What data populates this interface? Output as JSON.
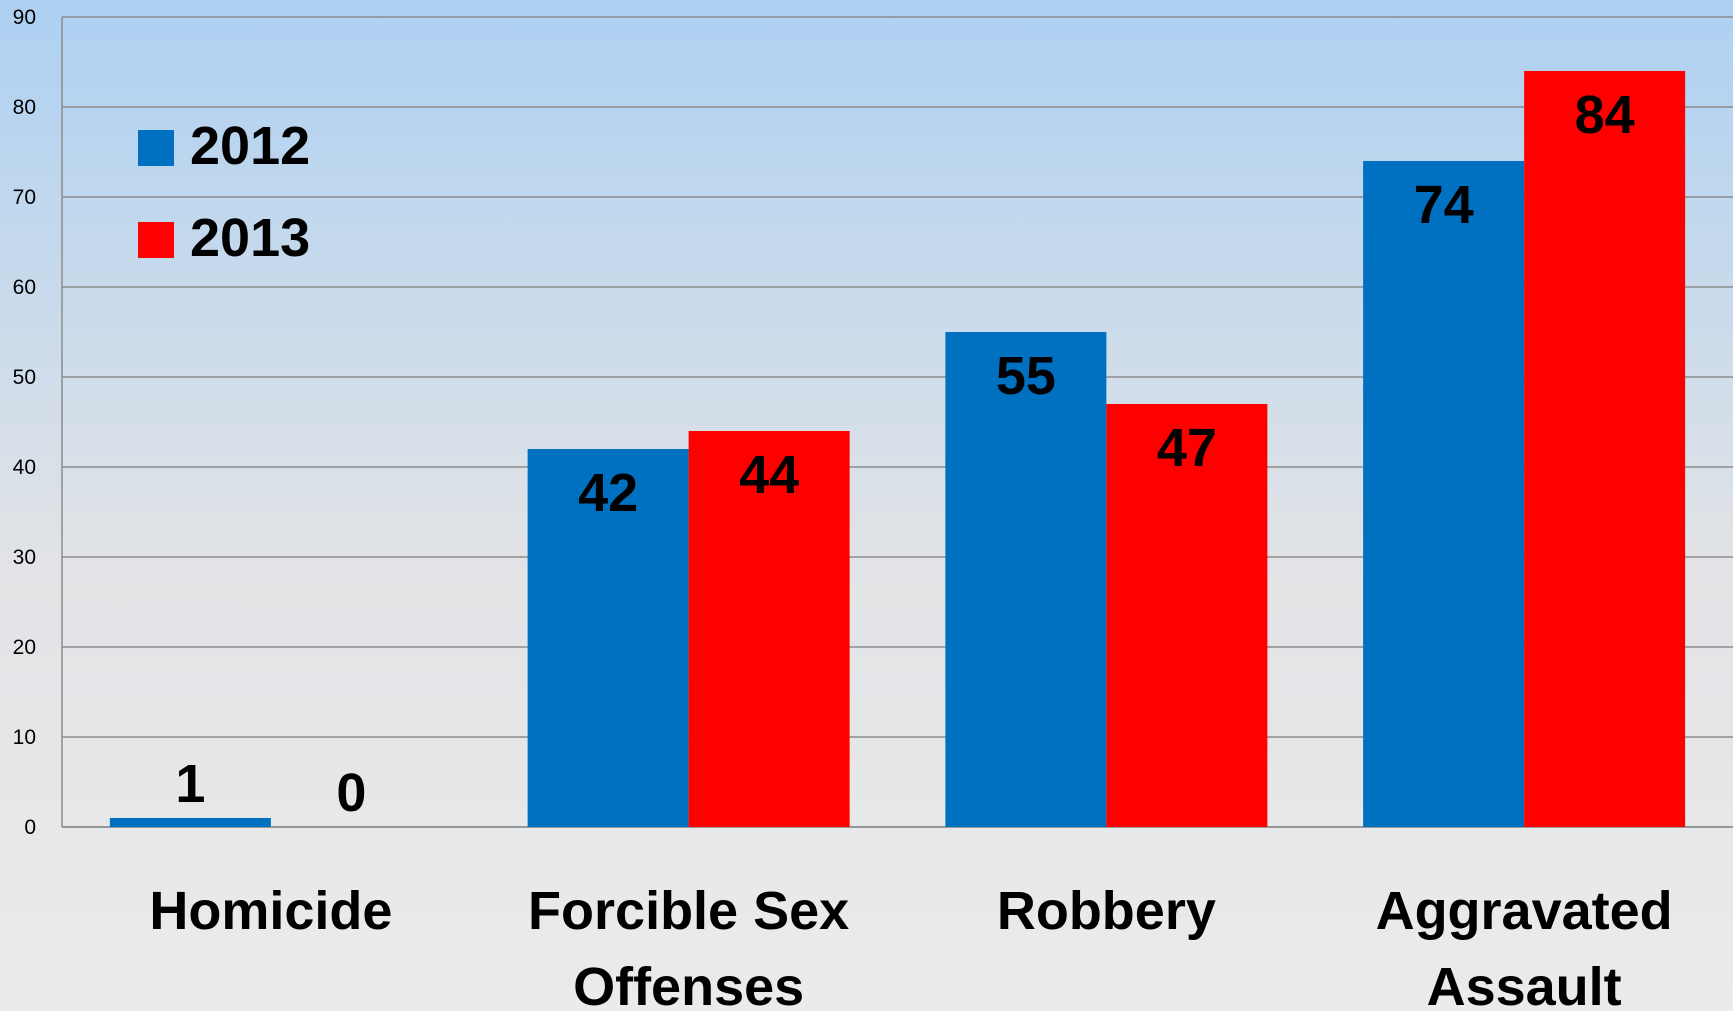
{
  "chart_data": {
    "type": "bar",
    "title": "",
    "xlabel": "",
    "ylabel": "",
    "ylim": [
      0,
      90
    ],
    "yticks": [
      0,
      10,
      20,
      30,
      40,
      50,
      60,
      70,
      80,
      90
    ],
    "categories": [
      "Homicide",
      "Forcible Sex Offenses",
      "Robbery",
      "Aggravated Assault"
    ],
    "category_lines": [
      [
        "Homicide"
      ],
      [
        "Forcible Sex",
        "Offenses"
      ],
      [
        "Robbery"
      ],
      [
        "Aggravated",
        "Assault"
      ]
    ],
    "series": [
      {
        "name": "2012",
        "color": "#0070C0",
        "values": [
          1,
          42,
          55,
          74
        ]
      },
      {
        "name": "2013",
        "color": "#FF0000",
        "values": [
          0,
          44,
          47,
          84
        ]
      }
    ],
    "grid": true,
    "legend_position": "top-left",
    "background": {
      "top": "#ADD0F2",
      "bottom": "#EBEBEB"
    }
  }
}
